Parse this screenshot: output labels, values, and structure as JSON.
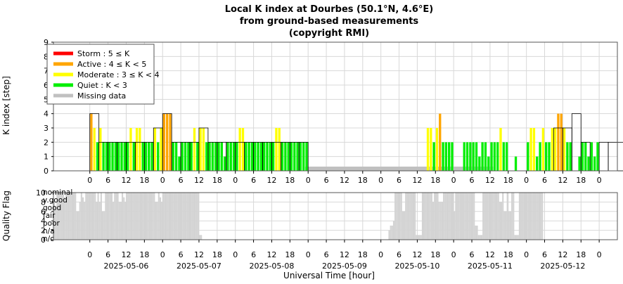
{
  "chart_data": [
    {
      "type": "bar",
      "title": "Local K index at Dourbes (50.1°N, 4.6°E)",
      "subtitle_1": "from ground-based measurements",
      "subtitle_2": "(copyright RMI)",
      "ylabel": "K index [step]",
      "ylim": [
        0,
        9
      ],
      "yticks": [
        "0",
        "1",
        "2",
        "3",
        "4",
        "5",
        "6",
        "7",
        "8",
        "9"
      ],
      "grid": true,
      "legend_position": "top-left",
      "legend": [
        {
          "name": "Storm : 5 ≤ K",
          "color": "#ff0000"
        },
        {
          "name": "Active : 4 ≤ K < 5",
          "color": "#ffa500"
        },
        {
          "name": "Moderate : 3 ≤ K < 4",
          "color": "#ffff00"
        },
        {
          "name": "Quiet : K < 3",
          "color": "#00ee00"
        },
        {
          "name": "Missing data",
          "color": "#c0c0c0"
        }
      ],
      "x_unit_hours": "3-hour intervals from 2025-05-06 00:00 UT",
      "k_3h": [
        4,
        2,
        2,
        2,
        2,
        2,
        2,
        3,
        4,
        2,
        2,
        2,
        3,
        2,
        2,
        2,
        2,
        2,
        2,
        2,
        2,
        2,
        2,
        2,
        null,
        null,
        null,
        null,
        null,
        null,
        null,
        null,
        null,
        null,
        null,
        null,
        null,
        null,
        null,
        null,
        null,
        null,
        null,
        null,
        null,
        null,
        null,
        null,
        null,
        null,
        null,
        3,
        3,
        4,
        2,
        null,
        2,
        2,
        2,
        2,
        2,
        3,
        null,
        null,
        2,
        2,
        3,
        2,
        3,
        3,
        null,
        1,
        2,
        1,
        null,
        null,
        null,
        null,
        null,
        null
      ],
      "k_1h": [
        4,
        3,
        2,
        3,
        2,
        2,
        2,
        2,
        2,
        2,
        2,
        2,
        2,
        3,
        2,
        3,
        3,
        2,
        2,
        2,
        2,
        3,
        2,
        3,
        4,
        4,
        4,
        2,
        2,
        1,
        2,
        2,
        2,
        2,
        3,
        2,
        3,
        3,
        2,
        2,
        2,
        2,
        2,
        2,
        1,
        2,
        2,
        2,
        2,
        3,
        3,
        2,
        2,
        2,
        2,
        2,
        2,
        2,
        2,
        2,
        2,
        3,
        3,
        2,
        2,
        2,
        2,
        2,
        2,
        2,
        2,
        2,
        null,
        null,
        null,
        null,
        null,
        null,
        null,
        null,
        null,
        null,
        null,
        null,
        null,
        null,
        null,
        null,
        null,
        null,
        null,
        null,
        null,
        null,
        null,
        null,
        null,
        null,
        null,
        null,
        null,
        null,
        null,
        null,
        null,
        null,
        null,
        null,
        null,
        null,
        null,
        3,
        3,
        2,
        3,
        4,
        2,
        2,
        2,
        2,
        null,
        null,
        null,
        2,
        2,
        2,
        2,
        2,
        1,
        2,
        2,
        1,
        2,
        2,
        2,
        3,
        2,
        2,
        null,
        null,
        1,
        null,
        null,
        null,
        2,
        3,
        3,
        1,
        2,
        3,
        2,
        2,
        3,
        3,
        4,
        4,
        3,
        2,
        2,
        null,
        null,
        1,
        2,
        2,
        1,
        2,
        1,
        2,
        null,
        null,
        null,
        null,
        null,
        null,
        null,
        null,
        null,
        null,
        null,
        null
      ],
      "missing_hours_ranges": [
        [
          71,
          96
        ],
        [
          96,
          120
        ],
        [
          120,
          133
        ]
      ],
      "x_ticks_hour_labels": [
        "0",
        "6",
        "12",
        "18",
        "0",
        "6",
        "12",
        "18",
        "0",
        "6",
        "12",
        "18",
        "0",
        "6",
        "12",
        "18",
        "0",
        "6",
        "12",
        "18",
        "0",
        "6",
        "12",
        "18",
        "0",
        "6",
        "12",
        "18",
        "0"
      ]
    },
    {
      "type": "bar",
      "ylabel": "Quality Flag",
      "ylim": [
        0,
        10
      ],
      "yticks": [
        "0",
        "2",
        "4",
        "6",
        "8",
        "10"
      ],
      "quality_labels": [
        "nominal",
        "v.good",
        "good",
        "fair",
        "poor",
        "n/a",
        "n/c"
      ],
      "xlabel": "Universal Time [hour]",
      "date_labels": [
        "2025-05-06",
        "2025-05-07",
        "2025-05-08",
        "2025-05-09",
        "2025-05-10",
        "2025-05-11",
        "2025-05-12"
      ],
      "x_ticks_hour_labels": [
        "0",
        "6",
        "12",
        "18",
        "0",
        "6",
        "12",
        "18",
        "0",
        "6",
        "12",
        "18",
        "0",
        "6",
        "12",
        "18",
        "0",
        "6",
        "12",
        "18",
        "0",
        "6",
        "12",
        "18",
        "0",
        "6",
        "12",
        "18",
        "0"
      ],
      "color": "#d3d3d3",
      "quality_by_hour": [
        8,
        7,
        10,
        10,
        10,
        10,
        10,
        9,
        10,
        10,
        10,
        10,
        10,
        10,
        10,
        6,
        6,
        8,
        10,
        9,
        8,
        10,
        10,
        10,
        10,
        10,
        10,
        10,
        8,
        10,
        8,
        10,
        6,
        6,
        10,
        10,
        10,
        10,
        10,
        8,
        10,
        10,
        10,
        8,
        8,
        10,
        9,
        8,
        10,
        10,
        10,
        10,
        10,
        10,
        10,
        10,
        10,
        10,
        10,
        10,
        10,
        10,
        10,
        10,
        10,
        10,
        10,
        8,
        8,
        10,
        9,
        8,
        10,
        10,
        10,
        10,
        10,
        10,
        10,
        10,
        10,
        10,
        10,
        10,
        10,
        10,
        10,
        10,
        10,
        10,
        10,
        10,
        10,
        10,
        10,
        10,
        1,
        1,
        0,
        0,
        0,
        0,
        0,
        0,
        0,
        0,
        0,
        0,
        0,
        0,
        0,
        0,
        0,
        0,
        0,
        0,
        0,
        0,
        0,
        0,
        0,
        0,
        0,
        0,
        0,
        0,
        0,
        0,
        0,
        0,
        0,
        0,
        0,
        0,
        0,
        0,
        0,
        0,
        0,
        0,
        0,
        0,
        0,
        0,
        0,
        0,
        0,
        0,
        0,
        0,
        0,
        0,
        0,
        0,
        0,
        0,
        0,
        0,
        0,
        0,
        0,
        0,
        0,
        0,
        0,
        0,
        0,
        0,
        0,
        0,
        0,
        0,
        0,
        0,
        0,
        0,
        0,
        0,
        0,
        0,
        0,
        0,
        0,
        0,
        0,
        0,
        0,
        0,
        0,
        0,
        0,
        0,
        0,
        0,
        0,
        0,
        0,
        0,
        0,
        0,
        0,
        0,
        0,
        0,
        0,
        0,
        0,
        0,
        0,
        0,
        0,
        0,
        0,
        0,
        0,
        0,
        0,
        0,
        0,
        0,
        0,
        2,
        3,
        3,
        4,
        10,
        10,
        10,
        10,
        10,
        6,
        6,
        10,
        10,
        10,
        10,
        10,
        10,
        10,
        1,
        1,
        1,
        1,
        10,
        10,
        10,
        10,
        10,
        10,
        10,
        8,
        10,
        10,
        10,
        8,
        8,
        8,
        10,
        10,
        10,
        10,
        10,
        10,
        10,
        6,
        10,
        10,
        10,
        10,
        10,
        10,
        10,
        10,
        10,
        10,
        10,
        10,
        10,
        3,
        3,
        1,
        1,
        1,
        10,
        10,
        10,
        10,
        10,
        10,
        10,
        10,
        10,
        10,
        10,
        8,
        8,
        10,
        6,
        6,
        10,
        6,
        6,
        10,
        10,
        1,
        1,
        1,
        10,
        10,
        10,
        10,
        10,
        10,
        10,
        10,
        10,
        10,
        10,
        10,
        10,
        10,
        10,
        10,
        0,
        0,
        0,
        0,
        0,
        0,
        0,
        0,
        0,
        0,
        0,
        0,
        0,
        0,
        0,
        0,
        0,
        0,
        0,
        0,
        0,
        0,
        0,
        0,
        0,
        0,
        0,
        0,
        0,
        0,
        0,
        0,
        0,
        0,
        0,
        0,
        0
      ]
    }
  ]
}
